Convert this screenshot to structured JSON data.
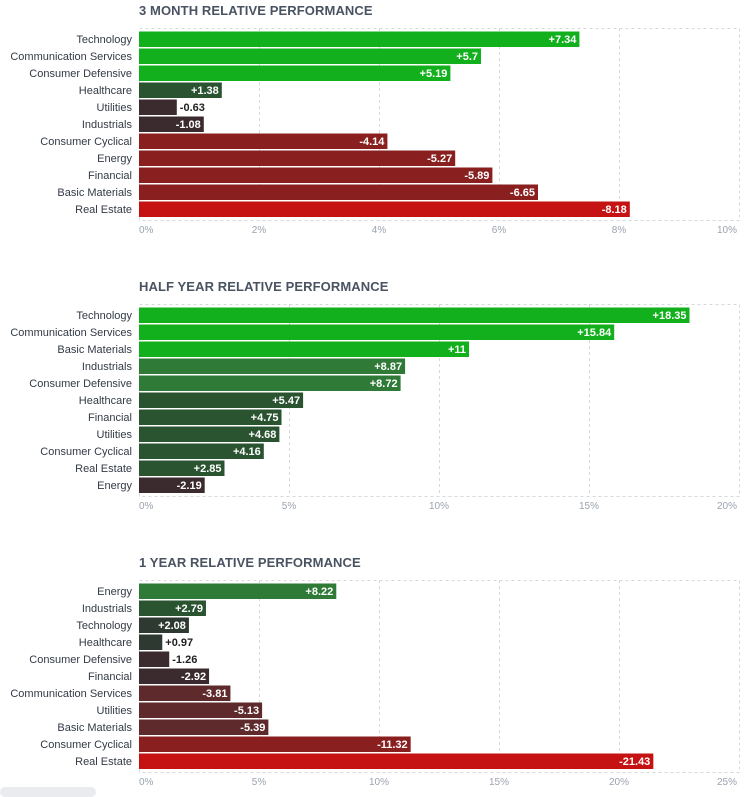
{
  "chart_data": [
    {
      "type": "bar",
      "orientation": "horizontal",
      "title": "3 MONTH RELATIVE PERFORMANCE",
      "categories": [
        "Technology",
        "Communication Services",
        "Consumer Defensive",
        "Healthcare",
        "Utilities",
        "Industrials",
        "Consumer Cyclical",
        "Energy",
        "Financial",
        "Basic Materials",
        "Real Estate"
      ],
      "values": [
        7.34,
        5.7,
        5.19,
        1.38,
        -0.63,
        -1.08,
        -4.14,
        -5.27,
        -5.89,
        -6.65,
        -8.18
      ],
      "value_labels": [
        "+7.34",
        "+5.7",
        "+5.19",
        "+1.38",
        "-0.63",
        "-1.08",
        "-4.14",
        "-5.27",
        "-5.89",
        "-6.65",
        "-8.18"
      ],
      "xlim": [
        0,
        10
      ],
      "ticks": [
        "0%",
        "2%",
        "4%",
        "6%",
        "8%",
        "10%"
      ],
      "grid": true
    },
    {
      "type": "bar",
      "orientation": "horizontal",
      "title": "HALF YEAR RELATIVE PERFORMANCE",
      "categories": [
        "Technology",
        "Communication Services",
        "Basic Materials",
        "Industrials",
        "Consumer Defensive",
        "Healthcare",
        "Financial",
        "Utilities",
        "Consumer Cyclical",
        "Real Estate",
        "Energy"
      ],
      "values": [
        18.35,
        15.84,
        11,
        8.87,
        8.72,
        5.47,
        4.75,
        4.68,
        4.16,
        2.85,
        -2.19
      ],
      "value_labels": [
        "+18.35",
        "+15.84",
        "+11",
        "+8.87",
        "+8.72",
        "+5.47",
        "+4.75",
        "+4.68",
        "+4.16",
        "+2.85",
        "-2.19"
      ],
      "xlim": [
        0,
        20
      ],
      "ticks": [
        "0%",
        "5%",
        "10%",
        "15%",
        "20%"
      ],
      "grid": true
    },
    {
      "type": "bar",
      "orientation": "horizontal",
      "title": "1 YEAR RELATIVE PERFORMANCE",
      "categories": [
        "Energy",
        "Industrials",
        "Technology",
        "Healthcare",
        "Consumer Defensive",
        "Financial",
        "Communication Services",
        "Utilities",
        "Basic Materials",
        "Consumer Cyclical",
        "Real Estate"
      ],
      "values": [
        8.22,
        2.79,
        2.08,
        0.97,
        -1.26,
        -2.92,
        -3.81,
        -5.13,
        -5.39,
        -11.32,
        -21.43
      ],
      "value_labels": [
        "+8.22",
        "+2.79",
        "+2.08",
        "+0.97",
        "-1.26",
        "-2.92",
        "-3.81",
        "-5.13",
        "-5.39",
        "-11.32",
        "-21.43"
      ],
      "xlim": [
        0,
        25
      ],
      "ticks": [
        "0%",
        "5%",
        "10%",
        "15%",
        "20%",
        "25%"
      ],
      "grid": true
    }
  ],
  "colors": {
    "pos_strong": "#12b01c",
    "pos_mid": "#2e7a36",
    "pos_weak": "#2a5330",
    "pos_faint": "#2e3a31",
    "neg_faint": "#3b2b2e",
    "neg_weak": "#5e2a2b",
    "neg_mid": "#8a1f1f",
    "neg_strong": "#c51212",
    "grid": "#d5d9de",
    "tick": "#9aa3ae"
  }
}
